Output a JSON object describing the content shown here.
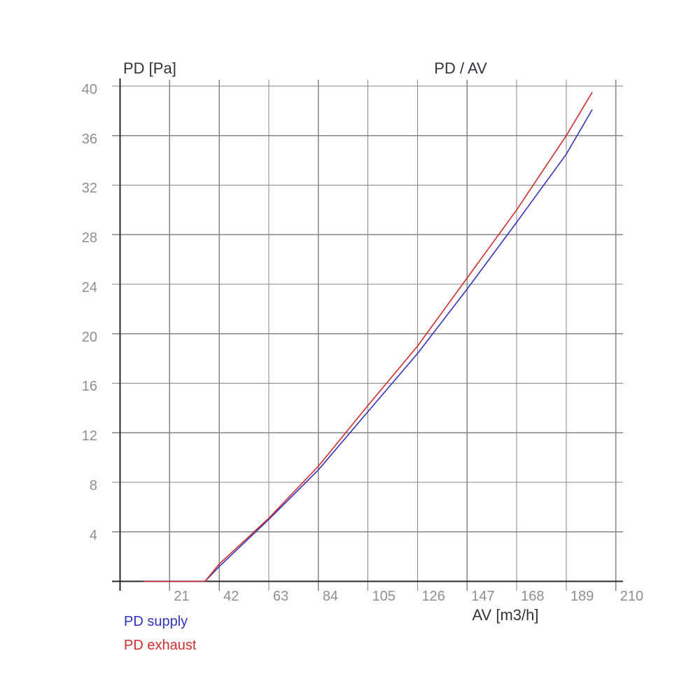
{
  "chart_data": {
    "type": "line",
    "title": "PD / AV",
    "y_axis_title": "PD [Pa]",
    "x_axis_title": "AV [m3/h]",
    "x_ticks": [
      21,
      42,
      63,
      84,
      105,
      126,
      147,
      168,
      189,
      210
    ],
    "y_ticks": [
      4,
      8,
      12,
      16,
      20,
      24,
      28,
      32,
      36,
      40
    ],
    "xlim": [
      0,
      213
    ],
    "ylim": [
      0,
      40.6
    ],
    "grid": true,
    "legend_position": "bottom-left",
    "series": [
      {
        "name": "PD supply",
        "color": "#3333c0",
        "points": [
          [
            10,
            0
          ],
          [
            36,
            0
          ],
          [
            42,
            1.2
          ],
          [
            63,
            5.0
          ],
          [
            84,
            9.0
          ],
          [
            105,
            13.7
          ],
          [
            126,
            18.4
          ],
          [
            147,
            23.6
          ],
          [
            168,
            29.0
          ],
          [
            189,
            34.5
          ],
          [
            200,
            38.1
          ]
        ]
      },
      {
        "name": "PD exhaust",
        "color": "#d22d2d",
        "points": [
          [
            10,
            0
          ],
          [
            36,
            0
          ],
          [
            42,
            1.4
          ],
          [
            63,
            5.1
          ],
          [
            84,
            9.3
          ],
          [
            105,
            14.2
          ],
          [
            126,
            19.0
          ],
          [
            147,
            24.5
          ],
          [
            168,
            30.0
          ],
          [
            189,
            36.0
          ],
          [
            200,
            39.5
          ]
        ]
      }
    ],
    "colors": {
      "grid": "#868686",
      "axis": "#2b2b2b",
      "tick_label": "#8f8f8f",
      "title": "#33333a",
      "background": "#ffffff"
    }
  }
}
